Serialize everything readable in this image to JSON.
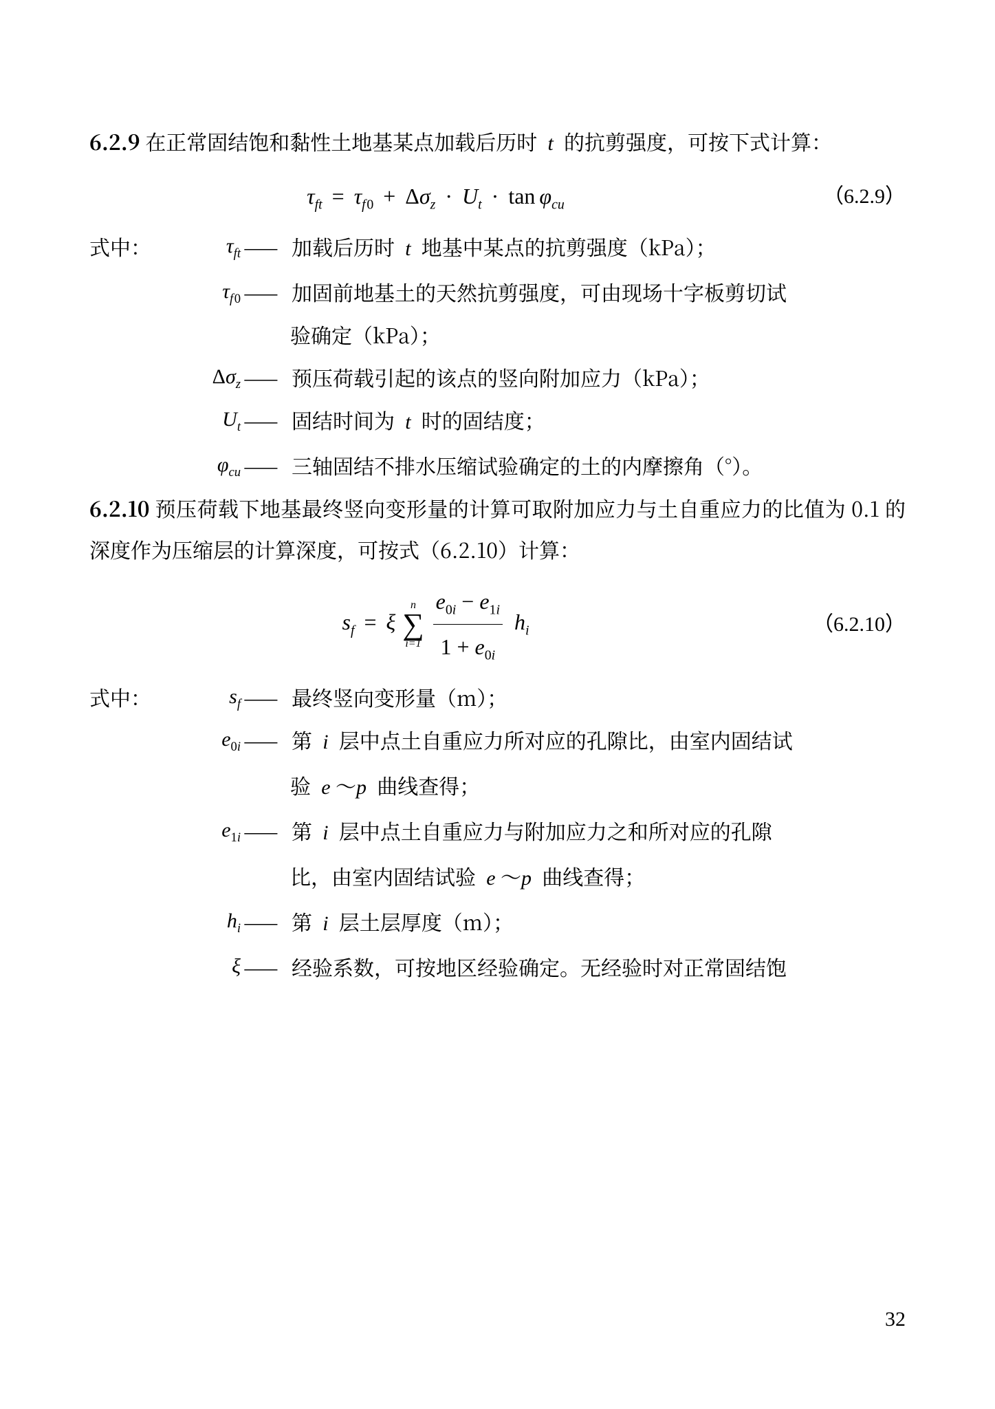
{
  "page_number": "32",
  "section629": {
    "num": "6.2.9",
    "intro_a": "在正常固结饱和黏性土地基某点加载后历时",
    "intro_b": "的抗剪强度，可按下式计算：",
    "eq_num": "（6.2.9）",
    "where_label": "式中：",
    "dash": "——",
    "d1": "加载后历时",
    "d1b": "地基中某点的抗剪强度（kPa）；",
    "d2": "加固前地基土的天然抗剪强度，可由现场十字板剪切试",
    "d2b": "验确定（kPa）；",
    "d3": "预压荷载引起的该点的竖向附加应力（kPa）；",
    "d4a": "固结时间为",
    "d4b": "时的固结度；",
    "d5": "三轴固结不排水压缩试验确定的土的内摩擦角（°）。"
  },
  "section6210": {
    "num": "6.2.10",
    "intro": "预压荷载下地基最终竖向变形量的计算可取附加应力与土自重应力的比值为 0.1 的深度作为压缩层的计算深度，可按式（6.2.10）计算：",
    "eq_num": "（6.2.10）",
    "where_label": "式中：",
    "dash": "——",
    "d1": "最终竖向变形量（m）；",
    "d2a": "第",
    "d2b": "层中点土自重应力所对应的孔隙比，由室内固结试",
    "d2c": "验",
    "d2d": "曲线查得；",
    "d3a": "第",
    "d3b": "层中点土自重应力与附加应力之和所对应的孔隙",
    "d3c": "比，由室内固结试验",
    "d3d": "曲线查得；",
    "d4a": "第",
    "d4b": "层土层厚度（m）；",
    "d5": "经验系数，可按地区经验确定。无经验时对正常固结饱"
  }
}
